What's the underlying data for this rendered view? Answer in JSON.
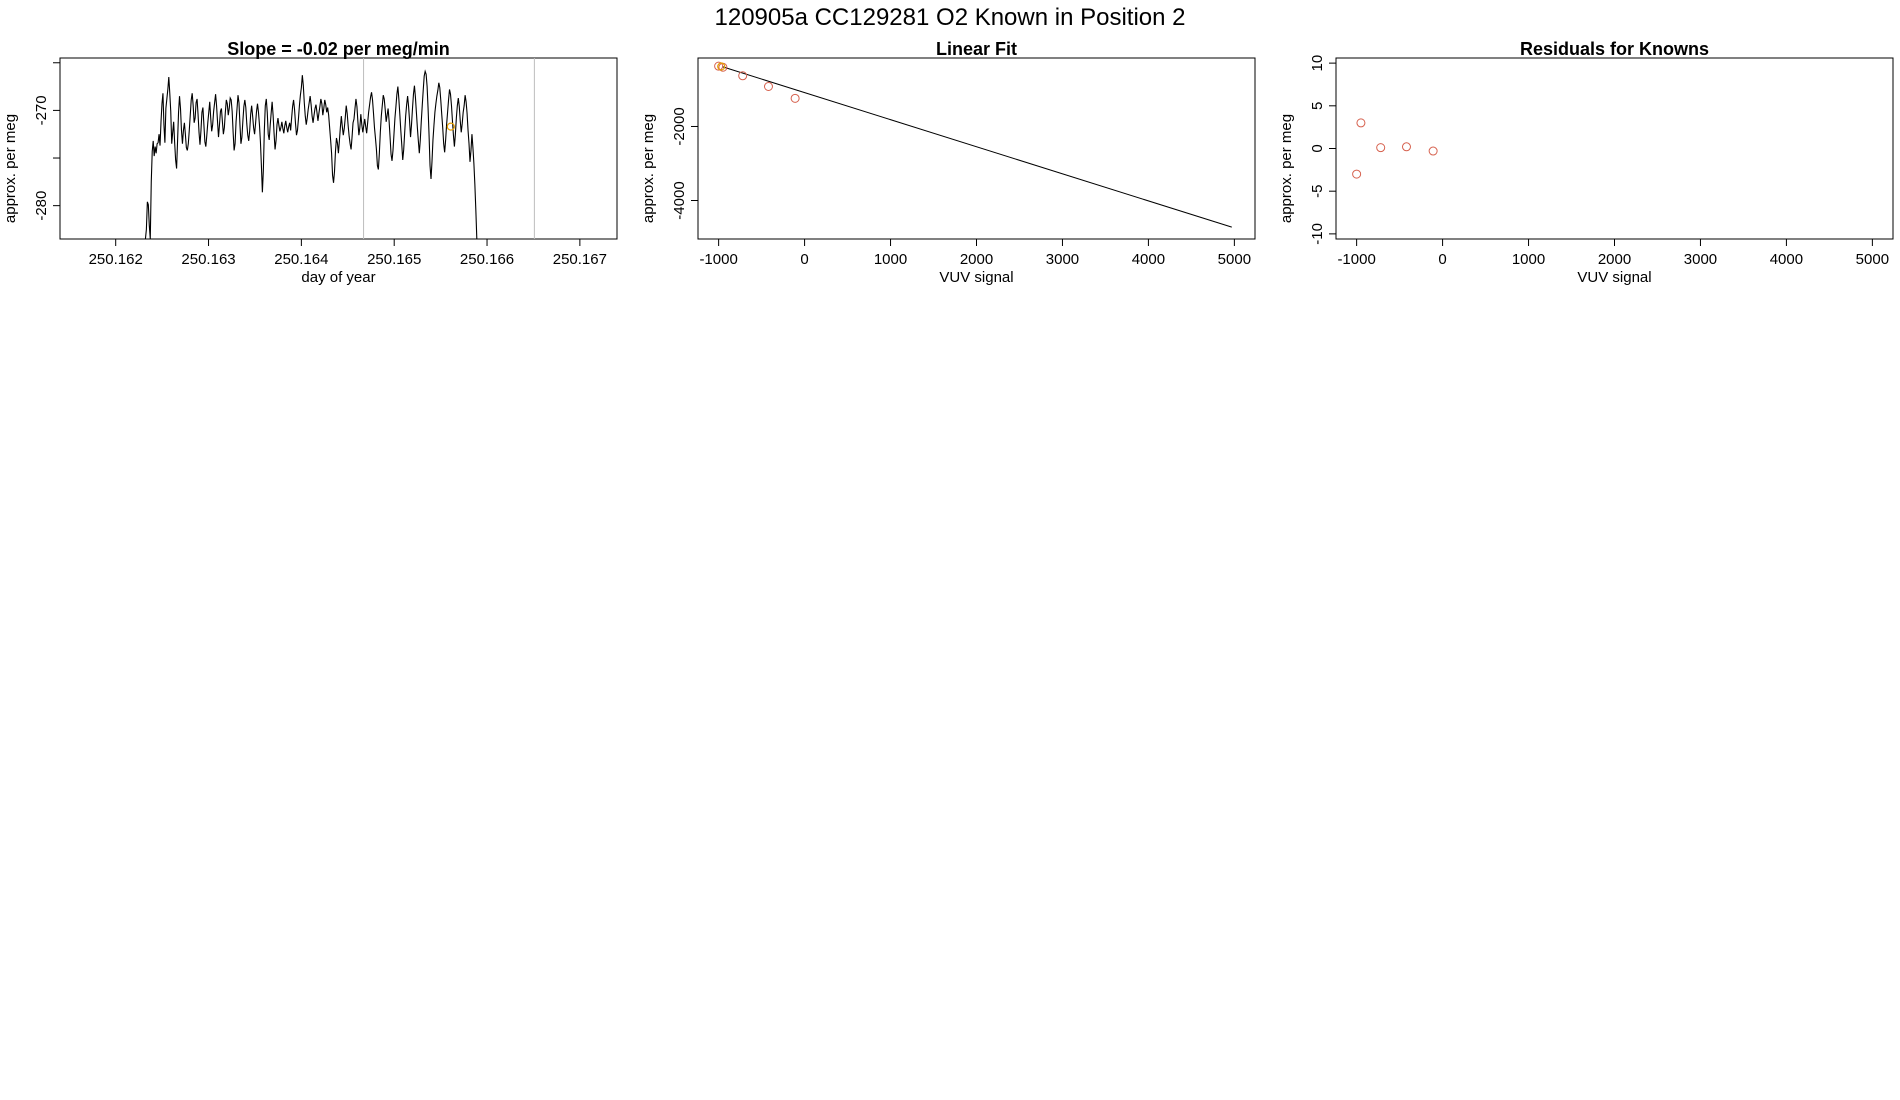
{
  "figure": {
    "title": "120905a      CC129281    O2 Known in Position  2"
  },
  "chart_data": [
    {
      "type": "line",
      "title": "Slope =  -0.02  per meg/min",
      "xlabel": "day of year",
      "ylabel": "approx. per meg",
      "xlim": [
        250.1614,
        250.1674
      ],
      "ylim": [
        -283.5,
        -264.5
      ],
      "x_ticks": [
        250.162,
        250.163,
        250.164,
        250.165,
        250.166,
        250.167
      ],
      "x_tick_labels": [
        "250.162",
        "250.163",
        "250.164",
        "250.165",
        "250.166",
        "250.167"
      ],
      "y_ticks": [
        -280,
        -275,
        -270,
        -265
      ],
      "y_tick_labels": [
        "-280",
        "",
        "-270",
        ""
      ],
      "vlines": [
        250.16467,
        250.16651
      ],
      "highlight_point": {
        "x": 250.16561,
        "y": -271.7,
        "color": "#e69f00"
      },
      "series": [
        {
          "color": "#000000",
          "x_start": 250.16232,
          "x_step": 1.05e-05,
          "values": [
            -283.5,
            -282.5,
            -279.6,
            -279.9,
            -282.1,
            -283.5,
            -277.5,
            -274.3,
            -273.2,
            -274.8,
            -273.8,
            -274.5,
            -273.5,
            -273.4,
            -272.5,
            -273.7,
            -271.2,
            -269.3,
            -268.2,
            -271.5,
            -273.4,
            -269.8,
            -268.8,
            -267.8,
            -266.5,
            -268.2,
            -270.1,
            -273.5,
            -272.3,
            -271.2,
            -273.4,
            -275.2,
            -276.1,
            -273.2,
            -270.2,
            -268.5,
            -269.8,
            -272.1,
            -273.5,
            -272.1,
            -271.3,
            -272.5,
            -273.9,
            -274.2,
            -273.5,
            -272.1,
            -270.5,
            -268.9,
            -268.2,
            -269.5,
            -271.3,
            -270.8,
            -269.2,
            -268.8,
            -270.4,
            -272.3,
            -273.6,
            -272.1,
            -270.2,
            -269.7,
            -271.5,
            -273.3,
            -273.8,
            -272.6,
            -271.3,
            -270.2,
            -269.1,
            -270.8,
            -272.2,
            -271.5,
            -270.1,
            -269.2,
            -268.3,
            -269.5,
            -271.2,
            -272.8,
            -271.5,
            -270.1,
            -269.8,
            -271.2,
            -272.5,
            -271.8,
            -270.2,
            -268.9,
            -269.3,
            -270.5,
            -269.8,
            -268.7,
            -268.9,
            -270.1,
            -272.3,
            -274.2,
            -273.5,
            -271.2,
            -269.8,
            -268.4,
            -269.2,
            -271.5,
            -273.5,
            -272.8,
            -271.1,
            -269.6,
            -268.9,
            -269.7,
            -271.4,
            -272.6,
            -273.2,
            -272.1,
            -270.4,
            -269.5,
            -270.6,
            -271.8,
            -272.5,
            -271.4,
            -270.1,
            -269.3,
            -270.2,
            -271.5,
            -273.3,
            -275.8,
            -278.6,
            -276.3,
            -272.1,
            -269.5,
            -268.8,
            -270.2,
            -272.5,
            -273.1,
            -271.6,
            -270.3,
            -269.1,
            -270.5,
            -272.4,
            -274.1,
            -273.2,
            -271.5,
            -270.8,
            -271.6,
            -272.2,
            -271.8,
            -271.2,
            -271.9,
            -272.4,
            -271.6,
            -271.1,
            -271.8,
            -272.3,
            -271.7,
            -271.3,
            -272.1,
            -270.8,
            -269.6,
            -268.9,
            -269.9,
            -271.4,
            -272.6,
            -272.1,
            -270.9,
            -269.5,
            -268.4,
            -267.6,
            -266.3,
            -267.4,
            -269.2,
            -270.6,
            -271.5,
            -270.8,
            -269.9,
            -269.2,
            -268.5,
            -269.4,
            -270.6,
            -271.3,
            -270.5,
            -269.8,
            -269.4,
            -270.2,
            -271.1,
            -270.3,
            -269.6,
            -268.8,
            -269.3,
            -270.5,
            -269.8,
            -268.9,
            -269.4,
            -270.2,
            -269.7,
            -270.5,
            -271.8,
            -273.1,
            -274.5,
            -276.8,
            -277.6,
            -276.4,
            -274.3,
            -272.9,
            -273.4,
            -274.5,
            -273.2,
            -271.8,
            -270.6,
            -271.7,
            -272.6,
            -271.9,
            -270.8,
            -269.5,
            -270.3,
            -271.6,
            -272.7,
            -273.5,
            -274.1,
            -272.8,
            -271.3,
            -270.9,
            -269.8,
            -268.8,
            -269.6,
            -271.2,
            -272.6,
            -271.8,
            -270.4,
            -271.5,
            -272.3,
            -271.6,
            -270.9,
            -271.7,
            -272.4,
            -271.3,
            -270.2,
            -269.4,
            -268.6,
            -268.1,
            -268.9,
            -270.3,
            -271.8,
            -272.9,
            -274.1,
            -275.8,
            -276.2,
            -274.5,
            -272.3,
            -270.6,
            -269.5,
            -268.4,
            -268.8,
            -269.9,
            -271.2,
            -270.5,
            -269.8,
            -271.1,
            -272.8,
            -274.6,
            -275.3,
            -274.2,
            -272.5,
            -270.8,
            -269.6,
            -268.3,
            -267.5,
            -268.8,
            -270.4,
            -272.1,
            -273.6,
            -275.2,
            -274.1,
            -272.3,
            -270.6,
            -269.4,
            -268.5,
            -269.6,
            -271.1,
            -272.8,
            -271.5,
            -269.8,
            -268.3,
            -267.4,
            -268.6,
            -270.2,
            -271.8,
            -273.2,
            -274.5,
            -273.1,
            -271.2,
            -269.5,
            -267.9,
            -266.4,
            -265.9,
            -266.2,
            -267.5,
            -269.8,
            -272.6,
            -275.8,
            -277.2,
            -275.4,
            -273.1,
            -271.6,
            -270.2,
            -269.3,
            -268.5,
            -267.9,
            -267.1,
            -267.6,
            -268.9,
            -270.4,
            -271.8,
            -273.5,
            -274.4,
            -273.1,
            -271.5,
            -270.2,
            -268.9,
            -267.8,
            -268.3,
            -269.5,
            -271.1,
            -272.6,
            -273.8,
            -272.5,
            -270.8,
            -269.5,
            -268.7,
            -269.6,
            -271.1,
            -272.3,
            -271.4,
            -270.2,
            -269.5,
            -268.4,
            -269.1,
            -270.3,
            -272.1,
            -273.5,
            -275.4,
            -274.2,
            -272.5,
            -273.9,
            -275.6,
            -277.8,
            -280.5,
            -283.5
          ]
        }
      ]
    },
    {
      "type": "scatter",
      "title": "Linear Fit",
      "xlabel": "VUV signal",
      "ylabel": "approx. per meg",
      "xlim": [
        -1240,
        5240
      ],
      "ylim": [
        -5040,
        -150
      ],
      "x_ticks": [
        -1000,
        0,
        1000,
        2000,
        3000,
        4000,
        5000
      ],
      "x_tick_labels": [
        "-1000",
        "0",
        "1000",
        "2000",
        "3000",
        "4000",
        "5000"
      ],
      "y_ticks": [
        -4000,
        -2000
      ],
      "y_tick_labels": [
        "-4000",
        "-2000"
      ],
      "points": {
        "color": "#d6604d",
        "x": [
          -1000,
          -950,
          -720,
          -420,
          -110
        ],
        "y": [
          -370,
          -400,
          -630,
          -920,
          -1240
        ]
      },
      "highlight_point": {
        "x": -970,
        "y": -380,
        "color": "#e69f00"
      },
      "fit_line": {
        "color": "#000000",
        "x": [
          -950,
          4970
        ],
        "y": [
          -390,
          -4720
        ]
      }
    },
    {
      "type": "scatter",
      "title": "Residuals for Knowns",
      "xlabel": "VUV signal",
      "ylabel": "approx. per meg",
      "xlim": [
        -1240,
        5240
      ],
      "ylim": [
        -10.6,
        10.6
      ],
      "x_ticks": [
        -1000,
        0,
        1000,
        2000,
        3000,
        4000,
        5000
      ],
      "x_tick_labels": [
        "-1000",
        "0",
        "1000",
        "2000",
        "3000",
        "4000",
        "5000"
      ],
      "y_ticks": [
        -10,
        -5,
        0,
        5,
        10
      ],
      "y_tick_labels": [
        "-10",
        "-5",
        "0",
        "5",
        "10"
      ],
      "points": {
        "color": "#d6604d",
        "x": [
          -1000,
          -950,
          -720,
          -420,
          -110
        ],
        "y": [
          -3.0,
          3.0,
          0.1,
          0.2,
          -0.3
        ]
      }
    }
  ]
}
